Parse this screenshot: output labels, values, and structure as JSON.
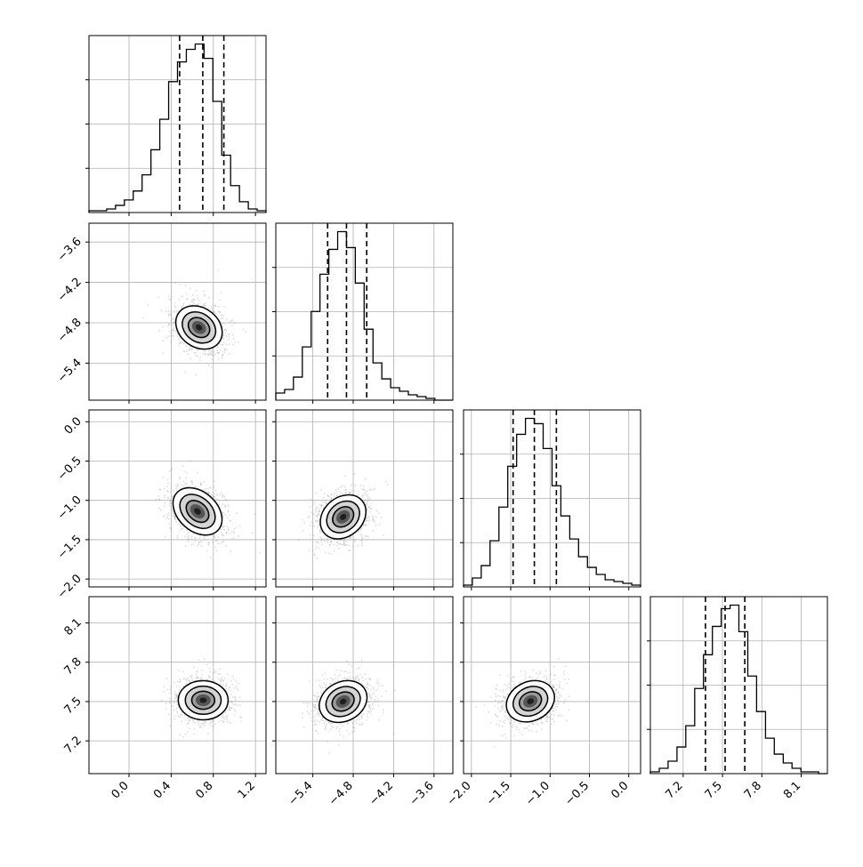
{
  "chart_data": {
    "type": "corner",
    "parameters": [
      {
        "range": [
          -0.38,
          1.3
        ],
        "ticks": [
          0.0,
          0.4,
          0.8,
          1.2
        ],
        "tick_labels": [
          "0.0",
          "0.4",
          "0.8",
          "1.2"
        ],
        "quantiles": [
          0.48,
          0.7,
          0.9
        ]
      },
      {
        "range": [
          -5.95,
          -3.32
        ],
        "ticks": [
          -5.4,
          -4.8,
          -4.2,
          -3.6
        ],
        "tick_labels": [
          "−5.4",
          "−4.8",
          "−4.2",
          "−3.6"
        ],
        "quantiles": [
          -5.18,
          -4.9,
          -4.6
        ]
      },
      {
        "range": [
          -2.1,
          0.15
        ],
        "ticks": [
          -2.0,
          -1.5,
          -1.0,
          -0.5,
          0.0
        ],
        "tick_labels": [
          "−2.0",
          "−1.5",
          "−1.0",
          "−0.5",
          "0.0"
        ],
        "quantiles": [
          -1.47,
          -1.2,
          -0.92
        ]
      },
      {
        "range": [
          6.95,
          8.3
        ],
        "ticks": [
          7.2,
          7.5,
          7.8,
          8.1
        ],
        "tick_labels": [
          "7.2",
          "7.5",
          "7.8",
          "8.1"
        ],
        "quantiles": [
          7.37,
          7.52,
          7.67
        ]
      }
    ],
    "histograms": [
      {
        "param": 0,
        "edges": [
          -0.38,
          -0.296,
          -0.212,
          -0.128,
          -0.044,
          0.04,
          0.124,
          0.208,
          0.292,
          0.376,
          0.46,
          0.544,
          0.628,
          0.712,
          0.796,
          0.88,
          0.964,
          1.048,
          1.132,
          1.216,
          1.3
        ],
        "counts": [
          1,
          1,
          2,
          4,
          7,
          12,
          21,
          35,
          52,
          73,
          84,
          91,
          94,
          86,
          62,
          32,
          15,
          6,
          2,
          1
        ]
      },
      {
        "param": 1,
        "edges": [
          -5.95,
          -5.819,
          -5.688,
          -5.556,
          -5.425,
          -5.294,
          -5.162,
          -5.031,
          -4.9,
          -4.769,
          -4.638,
          -4.506,
          -4.375,
          -4.244,
          -4.112,
          -3.981,
          -3.85,
          -3.719,
          -3.587,
          -3.456,
          -3.325
        ],
        "counts": [
          4,
          6,
          13,
          30,
          50,
          71,
          85,
          95,
          86,
          66,
          40,
          21,
          12,
          7,
          5,
          3,
          2,
          1,
          0,
          0
        ]
      },
      {
        "param": 2,
        "edges": [
          -2.1,
          -1.988,
          -1.875,
          -1.763,
          -1.65,
          -1.538,
          -1.425,
          -1.313,
          -1.2,
          -1.088,
          -0.975,
          -0.863,
          -0.75,
          -0.638,
          -0.525,
          -0.413,
          -0.3,
          -0.188,
          -0.075,
          0.038,
          0.15
        ],
        "counts": [
          1,
          5,
          12,
          26,
          45,
          68,
          86,
          95,
          92,
          78,
          57,
          40,
          27,
          17,
          11,
          7,
          4,
          3,
          2,
          1
        ]
      },
      {
        "param": 3,
        "edges": [
          6.95,
          7.018,
          7.085,
          7.153,
          7.22,
          7.288,
          7.355,
          7.423,
          7.49,
          7.558,
          7.625,
          7.693,
          7.76,
          7.828,
          7.895,
          7.963,
          8.03,
          8.098,
          8.165,
          8.233,
          8.3
        ],
        "counts": [
          1,
          3,
          7,
          15,
          27,
          48,
          67,
          83,
          93,
          95,
          80,
          55,
          35,
          20,
          11,
          6,
          3,
          1,
          1,
          0
        ]
      }
    ],
    "joint_panels": [
      {
        "x_param": 0,
        "y_param": 1,
        "x": [
          0.12,
          0.5,
          0.7,
          0.85,
          1.15
        ],
        "y": [
          -4.2,
          -4.7,
          -4.95,
          -5.1,
          -5.4
        ]
      },
      {
        "x_param": 0,
        "y_param": 2,
        "x": [
          0.1,
          0.45,
          0.7,
          0.85,
          1.15
        ],
        "y": [
          -0.45,
          -0.95,
          -1.2,
          -1.35,
          -1.75
        ]
      },
      {
        "x_param": 0,
        "y_param": 3,
        "x": [
          0.3,
          0.5,
          0.72,
          0.9,
          1.1
        ],
        "y": [
          7.5,
          7.52,
          7.53,
          7.5,
          7.5
        ]
      },
      {
        "x_param": 1,
        "y_param": 2,
        "x": [
          -5.55,
          -5.25,
          -4.95,
          -4.65,
          -4.35
        ],
        "y": [
          -1.65,
          -1.4,
          -1.25,
          -1.0,
          -0.75
        ]
      },
      {
        "x_param": 1,
        "y_param": 3,
        "x": [
          -5.5,
          -5.2,
          -4.95,
          -4.7,
          -4.4
        ],
        "y": [
          7.35,
          7.43,
          7.5,
          7.57,
          7.65
        ]
      },
      {
        "x_param": 2,
        "y_param": 3,
        "x": [
          -1.85,
          -1.55,
          -1.25,
          -0.95,
          -0.65
        ],
        "y": [
          7.33,
          7.42,
          7.5,
          7.58,
          7.68
        ]
      }
    ],
    "grid": true,
    "legend": false
  }
}
